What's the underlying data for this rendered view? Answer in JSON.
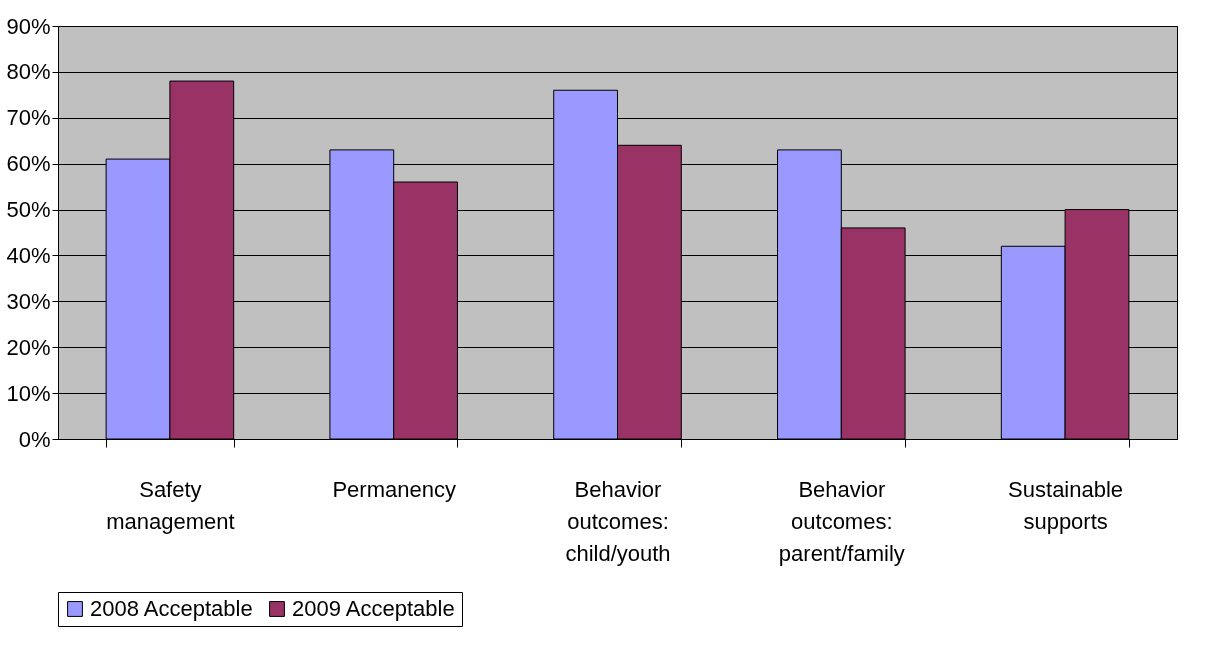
{
  "chart_data": {
    "type": "bar",
    "categories": [
      "Safety management",
      "Permanency",
      "Behavior outcomes: child/youth",
      "Behavior outcomes: parent/family",
      "Sustainable supports"
    ],
    "series": [
      {
        "name": "2008 Acceptable",
        "color": "#9999ff",
        "values": [
          61,
          63,
          76,
          63,
          42
        ]
      },
      {
        "name": "2009 Acceptable",
        "color": "#993366",
        "values": [
          78,
          56,
          64,
          46,
          50
        ]
      }
    ],
    "ylim": [
      0,
      90
    ],
    "yticks": [
      {
        "value": 0,
        "label": "0%"
      },
      {
        "value": 10,
        "label": "10%"
      },
      {
        "value": 20,
        "label": "20%"
      },
      {
        "value": 30,
        "label": "30%"
      },
      {
        "value": 40,
        "label": "40%"
      },
      {
        "value": 50,
        "label": "50%"
      },
      {
        "value": 60,
        "label": "60%"
      },
      {
        "value": 70,
        "label": "70%"
      },
      {
        "value": 80,
        "label": "80%"
      },
      {
        "value": 90,
        "label": "90%"
      }
    ],
    "grid": "y",
    "legend": "bottom"
  }
}
